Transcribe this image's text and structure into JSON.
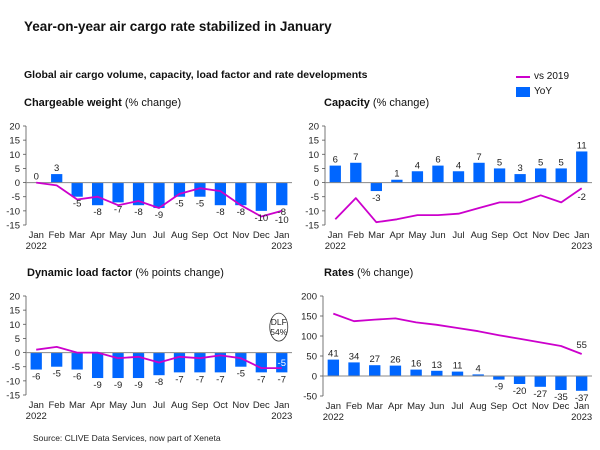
{
  "title": "Year-on-year air cargo rate stabilized in January",
  "subtitle": "Global air cargo volume, capacity, load factor and rate developments",
  "legend": {
    "line_label": "vs 2019",
    "bar_label": "YoY",
    "line_color": "#cc00cc",
    "bar_color": "#0066ff"
  },
  "source": "Source: CLIVE Data Services, now part of Xeneta",
  "chart_data": [
    {
      "type": "bar",
      "id": "chargeable-weight",
      "title_bold": "Chargeable weight",
      "title_rest": " (% change)",
      "categories": [
        "Jan",
        "Feb",
        "Mar",
        "Apr",
        "May",
        "Jun",
        "Jul",
        "Aug",
        "Sep",
        "Oct",
        "Nov",
        "Dec",
        "Jan"
      ],
      "year_labels": {
        "first": "2022",
        "last": "2023"
      },
      "ylim": [
        -15,
        20
      ],
      "yticks": [
        20,
        15,
        10,
        5,
        0,
        -5,
        -10,
        -15
      ],
      "series": [
        {
          "name": "YoY",
          "type": "bar",
          "values": [
            0,
            3,
            -5,
            -8,
            -7,
            -8,
            -9,
            -5,
            -5,
            -8,
            -8,
            -10,
            -8
          ],
          "labels": [
            "0",
            "3",
            "-5",
            "-8",
            "-7",
            "-8",
            "-9",
            "-5",
            "-5",
            "-8",
            "-8",
            "-10",
            "-8"
          ]
        },
        {
          "name": "vs 2019",
          "type": "line",
          "values": [
            0,
            -1,
            -6,
            -5,
            -8,
            -6.5,
            -9,
            -4,
            -2,
            -3,
            -8,
            -12,
            -10
          ],
          "end_label": "-10"
        }
      ]
    },
    {
      "type": "bar",
      "id": "capacity",
      "title_bold": "Capacity",
      "title_rest": " (% change)",
      "categories": [
        "Jan",
        "Feb",
        "Mar",
        "Apr",
        "May",
        "Jun",
        "Jul",
        "Aug",
        "Sep",
        "Oct",
        "Nov",
        "Dec",
        "Jan"
      ],
      "year_labels": {
        "first": "2022",
        "last": "2023"
      },
      "ylim": [
        -15,
        20
      ],
      "yticks": [
        20,
        15,
        10,
        5,
        0,
        -5,
        -10,
        -15
      ],
      "series": [
        {
          "name": "YoY",
          "type": "bar",
          "values": [
            6,
            7,
            -3,
            1,
            4,
            6,
            4,
            7,
            5,
            3,
            5,
            5,
            11
          ],
          "labels": [
            "6",
            "7",
            "-3",
            "1",
            "4",
            "6",
            "4",
            "7",
            "5",
            "3",
            "5",
            "5",
            "11"
          ]
        },
        {
          "name": "vs 2019",
          "type": "line",
          "values": [
            -13,
            -5.5,
            -14,
            -13,
            -11.5,
            -11.5,
            -11,
            -9,
            -7,
            -7,
            -4.5,
            -7,
            -2
          ],
          "end_label": "-2"
        }
      ]
    },
    {
      "type": "bar",
      "id": "dynamic-load-factor",
      "title_bold": "Dynamic load factor",
      "title_rest": " (% points change)",
      "categories": [
        "Jan",
        "Feb",
        "Mar",
        "Apr",
        "May",
        "Jun",
        "Jul",
        "Aug",
        "Sep",
        "Oct",
        "Nov",
        "Dec",
        "Jan"
      ],
      "year_labels": {
        "first": "2022",
        "last": "2023"
      },
      "ylim": [
        -15,
        20
      ],
      "yticks": [
        20,
        15,
        10,
        5,
        0,
        -5,
        -10,
        -15
      ],
      "annotation": {
        "line1": "DLF",
        "line2": "54%"
      },
      "series": [
        {
          "name": "YoY",
          "type": "bar",
          "values": [
            -6,
            -5,
            -6,
            -9,
            -9,
            -9,
            -8,
            -7,
            -7,
            -7,
            -5,
            -7,
            -7
          ],
          "labels": [
            "-6",
            "-5",
            "-6",
            "-9",
            "-9",
            "-9",
            "-8",
            "-7",
            "-7",
            "-7",
            "-5",
            "-7",
            "-7"
          ]
        },
        {
          "name": "vs 2019",
          "type": "line",
          "values": [
            1,
            2,
            0,
            0,
            -2,
            -1.5,
            -3.5,
            -1.5,
            -2,
            -1,
            -2,
            -5.5,
            -5.5
          ],
          "end_label": "-5"
        }
      ]
    },
    {
      "type": "bar",
      "id": "rates",
      "title_bold": "Rates",
      "title_rest": " (% change)",
      "categories": [
        "Jan",
        "Feb",
        "Mar",
        "Apr",
        "May",
        "Jun",
        "Jul",
        "Aug",
        "Sep",
        "Oct",
        "Nov",
        "Dec",
        "Jan"
      ],
      "year_labels": {
        "first": "2022",
        "last": "2023"
      },
      "ylim": [
        -50,
        200
      ],
      "yticks": [
        200,
        150,
        100,
        50,
        0,
        -50
      ],
      "series": [
        {
          "name": "YoY",
          "type": "bar",
          "values": [
            41,
            34,
            27,
            26,
            16,
            13,
            11,
            4,
            -9,
            -20,
            -27,
            -35,
            -37
          ],
          "labels": [
            "41",
            "34",
            "27",
            "26",
            "16",
            "13",
            "11",
            "4",
            "-9",
            "-20",
            "-27",
            "-35",
            "-37"
          ]
        },
        {
          "name": "vs 2019",
          "type": "line",
          "values": [
            156,
            137,
            141,
            144,
            134,
            128,
            120,
            112,
            102,
            93,
            84,
            75,
            55
          ],
          "end_label": "55"
        }
      ]
    }
  ]
}
